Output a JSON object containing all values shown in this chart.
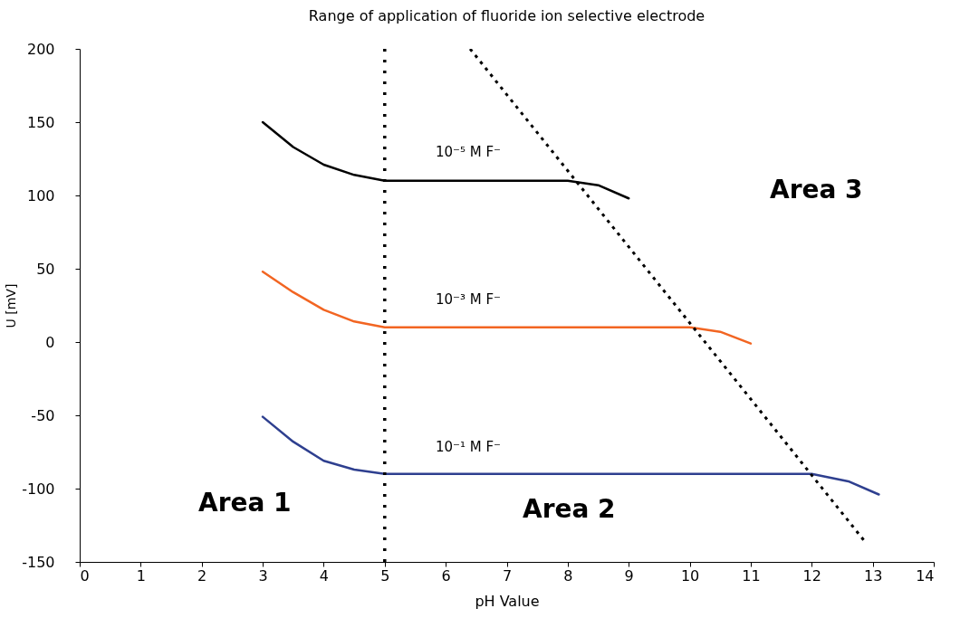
{
  "chart_data": {
    "type": "line",
    "title": "Range of application of fluoride ion selective electrode",
    "xlabel": "pH Value",
    "ylabel": "U [mV]",
    "xlim": [
      0,
      14
    ],
    "xticks": [
      0,
      1,
      2,
      3,
      4,
      5,
      6,
      7,
      8,
      9,
      10,
      11,
      12,
      13,
      14
    ],
    "ylim": [
      -150,
      200
    ],
    "yticks": [
      -150,
      -100,
      -50,
      0,
      50,
      100,
      150,
      200
    ],
    "grid": false,
    "marker": "none",
    "line_style": "solid",
    "series": [
      {
        "color": "#000000",
        "x": [
          3,
          3.5,
          4,
          4.5,
          5,
          6,
          7,
          8,
          8.5,
          9
        ],
        "values": [
          150,
          133,
          121,
          114,
          110,
          110,
          110,
          110,
          107,
          98
        ]
      },
      {
        "color": "#f26522",
        "x": [
          3,
          3.5,
          4,
          4.5,
          5,
          6,
          7,
          8,
          9,
          10,
          10.5,
          11
        ],
        "values": [
          48,
          34,
          22,
          14,
          10,
          10,
          10,
          10,
          10,
          10,
          7,
          -1
        ]
      },
      {
        "color": "#2e3f8f",
        "x": [
          3,
          3.5,
          4,
          4.5,
          5,
          6,
          8,
          10,
          12,
          12.6,
          13.1
        ],
        "values": [
          -51,
          -68,
          -81,
          -87,
          -90,
          -90,
          -90,
          -90,
          -90,
          -95,
          -104
        ]
      },
      {
        "color": "#000000",
        "line_style": "dotted",
        "x": [
          6.4,
          12.85
        ],
        "values": [
          200,
          -135
        ]
      }
    ],
    "ref_lines": [
      {
        "axis": "x",
        "value": 5,
        "color": "#000000",
        "line_style": "dotted"
      }
    ],
    "annotations": [
      "10⁻⁵ M F⁻",
      "10⁻³ M F⁻",
      "10⁻¹ M F⁻",
      "Area 1",
      "Area 2",
      "Area 3"
    ]
  }
}
